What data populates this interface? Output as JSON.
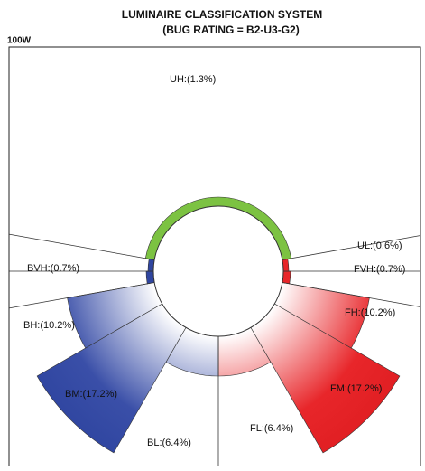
{
  "header": {
    "title": "LUMINAIRE CLASSIFICATION SYSTEM",
    "subtitle": "(BUG RATING = B2-U3-G2)",
    "wattage": "100W"
  },
  "zones": [
    {
      "label": "UH:(1.3%)"
    },
    {
      "label": "UL:(0.6%)"
    },
    {
      "label": "BVH:(0.7%)"
    },
    {
      "label": "FVH:(0.7%)"
    },
    {
      "label": "BH:(10.2%)"
    },
    {
      "label": "FH:(10.2%)"
    },
    {
      "label": "BM:(17.2%)"
    },
    {
      "label": "FM:(17.2%)"
    },
    {
      "label": "BL:(6.4%)"
    },
    {
      "label": "FL:(6.4%)"
    }
  ]
}
